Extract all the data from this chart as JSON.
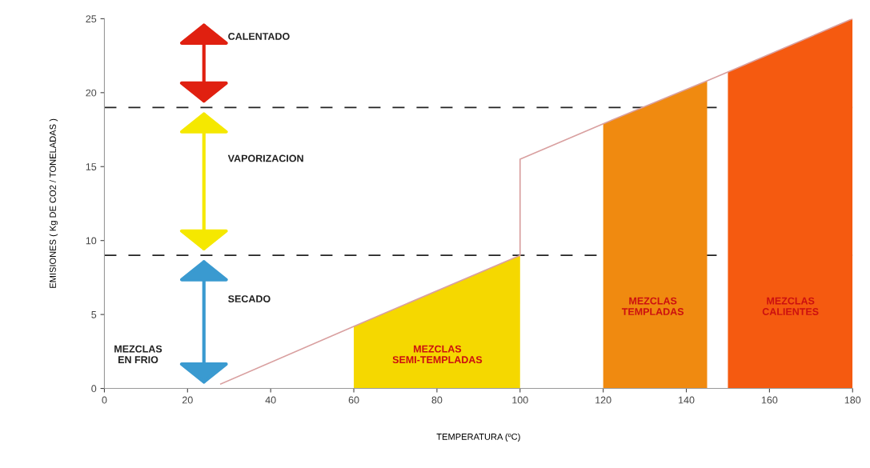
{
  "chart_data": {
    "type": "line",
    "xlabel": "TEMPERATURA (ºC)",
    "ylabel": "EMISIONES ( Kg DE CO2 / TONELADAS )",
    "xlim": [
      0,
      180
    ],
    "xticks": [
      0,
      20,
      40,
      60,
      80,
      100,
      120,
      140,
      160,
      180
    ],
    "ylim": [
      0,
      25
    ],
    "yticks": [
      0,
      5,
      10,
      15,
      20,
      25
    ],
    "grid": false,
    "legend": false,
    "marker": "none",
    "line_style": "solid",
    "series": [
      {
        "type": "area",
        "color": "#f5d800",
        "x": [
          60,
          100
        ],
        "values": [
          4.2,
          9.0
        ]
      },
      {
        "type": "area",
        "color": "#f08a10",
        "x": [
          120,
          145
        ],
        "values": [
          17.9,
          20.8
        ]
      },
      {
        "type": "area",
        "color": "#f55a10",
        "x": [
          150,
          180
        ],
        "values": [
          21.4,
          25
        ]
      },
      {
        "color": "#d9a0a0",
        "x": [
          28,
          60,
          100,
          100,
          120,
          145,
          150,
          180
        ],
        "values": [
          0.3,
          4.2,
          9.0,
          15.5,
          17.9,
          20.8,
          21.4,
          25
        ]
      }
    ],
    "ref_lines": [
      {
        "axis": "y",
        "value": 19,
        "color": "#222222",
        "line_style": "dashed"
      },
      {
        "axis": "y",
        "value": 9,
        "color": "#222222",
        "line_style": "dashed"
      }
    ],
    "annotations": [
      "CALENTADO",
      "VAPORIZACION",
      "SECADO",
      "MEZCLAS\nEN FRIO",
      "MEZCLAS\nSEMI-TEMPLADAS",
      "MEZCLAS\nTEMPLADAS",
      "MEZCLAS\nCALIENTES"
    ]
  }
}
